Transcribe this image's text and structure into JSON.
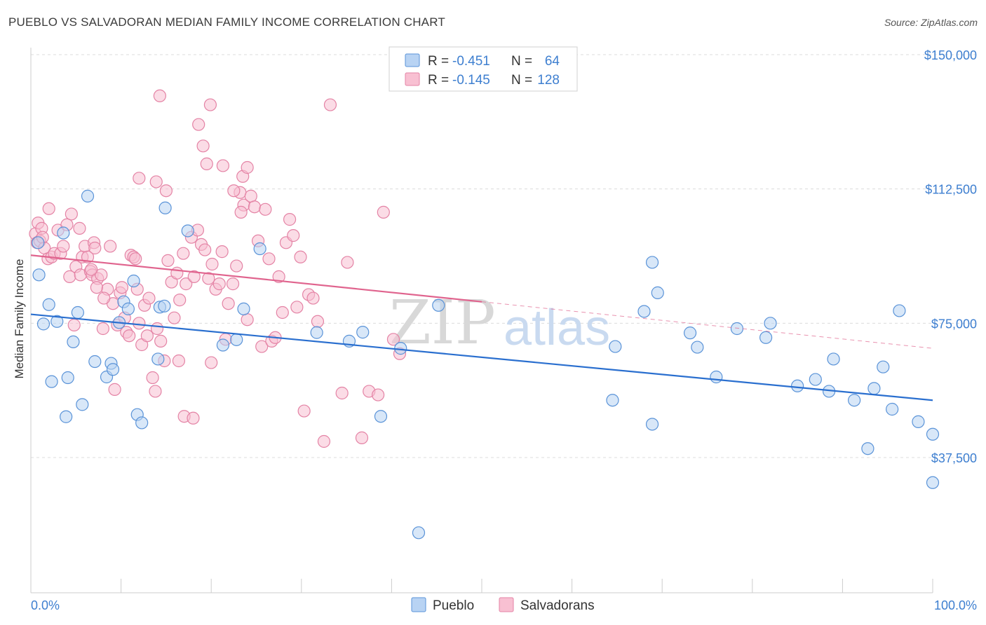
{
  "title": "PUEBLO VS SALVADORAN MEDIAN FAMILY INCOME CORRELATION CHART",
  "source": "Source: ZipAtlas.com",
  "watermark": {
    "zip": "ZIP",
    "atlas": "atlas"
  },
  "legend": {
    "r_label": "R =",
    "n_label": "N =",
    "items": [
      {
        "name": "Pueblo",
        "r": "-0.451",
        "n": "64",
        "fill": "#b8d3f3",
        "stroke": "#5a93d8"
      },
      {
        "name": "Salvadorans",
        "r": "-0.145",
        "n": "128",
        "fill": "#f8c0d2",
        "stroke": "#e483a5"
      }
    ]
  },
  "chart_data": {
    "type": "scatter",
    "title": "PUEBLO VS SALVADORAN MEDIAN FAMILY INCOME CORRELATION CHART",
    "xlabel": "",
    "ylabel": "Median Family Income",
    "xlim": [
      0,
      100
    ],
    "ylim": [
      8000,
      153000
    ],
    "x_tick_labels": [
      "0.0%",
      "100.0%"
    ],
    "y_ticks": [
      37500,
      75000,
      112500,
      150000
    ],
    "y_tick_labels": [
      "$37,500",
      "$75,000",
      "$112,500",
      "$150,000"
    ],
    "grid": "horizontal dashed",
    "legend_position": "top-center",
    "series": [
      {
        "name": "Pueblo",
        "color": "#5a93d8",
        "fill": "#b8d3f3",
        "trend": {
          "x": [
            0,
            100
          ],
          "y": [
            77500,
            53500
          ],
          "color": "#2a6fcf"
        },
        "points": [
          [
            0.8,
            97.5
          ],
          [
            0.9,
            88.5
          ],
          [
            1.4,
            74.8
          ],
          [
            2.0,
            80.2
          ],
          [
            2.3,
            58.7
          ],
          [
            2.9,
            75.5
          ],
          [
            3.6,
            100.2
          ],
          [
            3.9,
            48.9
          ],
          [
            4.1,
            59.8
          ],
          [
            4.7,
            69.8
          ],
          [
            5.2,
            78.0
          ],
          [
            5.7,
            52.3
          ],
          [
            6.3,
            110.5
          ],
          [
            7.1,
            64.3
          ],
          [
            8.4,
            60.0
          ],
          [
            8.9,
            63.8
          ],
          [
            9.1,
            62.1
          ],
          [
            9.8,
            75.2
          ],
          [
            10.3,
            81.0
          ],
          [
            10.8,
            79.0
          ],
          [
            11.4,
            86.8
          ],
          [
            11.8,
            49.5
          ],
          [
            12.3,
            47.2
          ],
          [
            14.1,
            65.0
          ],
          [
            14.3,
            79.5
          ],
          [
            14.8,
            79.8
          ],
          [
            14.9,
            107.2
          ],
          [
            17.4,
            100.8
          ],
          [
            21.3,
            68.9
          ],
          [
            22.8,
            70.4
          ],
          [
            23.6,
            79.0
          ],
          [
            25.4,
            95.8
          ],
          [
            31.7,
            72.4
          ],
          [
            35.3,
            70.0
          ],
          [
            36.8,
            72.5
          ],
          [
            38.8,
            49.0
          ],
          [
            41.0,
            68.0
          ],
          [
            43.0,
            16.5
          ],
          [
            45.2,
            80.0
          ],
          [
            64.5,
            53.5
          ],
          [
            64.8,
            68.5
          ],
          [
            68.0,
            78.3
          ],
          [
            68.9,
            46.8
          ],
          [
            68.9,
            92.0
          ],
          [
            69.5,
            83.5
          ],
          [
            73.1,
            72.3
          ],
          [
            73.9,
            68.3
          ],
          [
            76.0,
            60.0
          ],
          [
            78.3,
            73.5
          ],
          [
            81.5,
            71.0
          ],
          [
            82.0,
            75.0
          ],
          [
            85.0,
            57.5
          ],
          [
            87.0,
            59.3
          ],
          [
            88.5,
            56.0
          ],
          [
            89.0,
            65.0
          ],
          [
            91.3,
            53.5
          ],
          [
            92.8,
            40.0
          ],
          [
            93.5,
            56.8
          ],
          [
            94.5,
            62.8
          ],
          [
            95.5,
            51.0
          ],
          [
            96.3,
            78.5
          ],
          [
            98.4,
            47.5
          ],
          [
            100.0,
            30.5
          ],
          [
            100.0,
            44.0
          ]
        ]
      },
      {
        "name": "Salvadorans",
        "color": "#e483a5",
        "fill": "#f8c0d2",
        "trend": {
          "x": [
            0,
            50
          ],
          "y": [
            94000,
            81000
          ],
          "color": "#e0648e",
          "dashed_extension": {
            "x": [
              50,
              100
            ],
            "y": [
              81000,
              68000
            ]
          }
        },
        "points": [
          [
            0.5,
            100.0
          ],
          [
            0.7,
            97.5
          ],
          [
            0.8,
            103.0
          ],
          [
            1.0,
            98.0
          ],
          [
            1.2,
            101.5
          ],
          [
            1.3,
            99.0
          ],
          [
            1.5,
            96.0
          ],
          [
            1.9,
            93.0
          ],
          [
            2.0,
            107.0
          ],
          [
            2.3,
            93.5
          ],
          [
            2.6,
            94.5
          ],
          [
            3.0,
            101.0
          ],
          [
            3.3,
            94.5
          ],
          [
            3.6,
            96.5
          ],
          [
            4.0,
            102.5
          ],
          [
            4.3,
            88.0
          ],
          [
            4.5,
            105.5
          ],
          [
            4.8,
            74.5
          ],
          [
            5.0,
            90.8
          ],
          [
            5.4,
            101.5
          ],
          [
            5.5,
            88.5
          ],
          [
            5.7,
            93.5
          ],
          [
            6.0,
            96.5
          ],
          [
            6.3,
            93.5
          ],
          [
            6.6,
            89.5
          ],
          [
            6.8,
            88.5
          ],
          [
            7.0,
            97.5
          ],
          [
            7.1,
            96.0
          ],
          [
            7.4,
            87.5
          ],
          [
            7.8,
            88.5
          ],
          [
            8.0,
            73.5
          ],
          [
            8.5,
            84.5
          ],
          [
            8.8,
            96.5
          ],
          [
            9.1,
            80.5
          ],
          [
            9.3,
            56.5
          ],
          [
            9.6,
            74.5
          ],
          [
            9.9,
            83.5
          ],
          [
            10.1,
            85.0
          ],
          [
            10.4,
            76.5
          ],
          [
            10.6,
            72.5
          ],
          [
            10.9,
            71.5
          ],
          [
            11.1,
            94.0
          ],
          [
            11.4,
            93.5
          ],
          [
            11.8,
            84.5
          ],
          [
            12.0,
            75.0
          ],
          [
            12.3,
            69.0
          ],
          [
            12.6,
            80.0
          ],
          [
            12.9,
            71.5
          ],
          [
            13.1,
            82.0
          ],
          [
            13.5,
            59.8
          ],
          [
            13.8,
            56.0
          ],
          [
            14.0,
            73.5
          ],
          [
            14.4,
            70.0
          ],
          [
            14.8,
            64.5
          ],
          [
            15.2,
            92.5
          ],
          [
            15.6,
            86.5
          ],
          [
            15.9,
            76.5
          ],
          [
            16.2,
            89.0
          ],
          [
            16.5,
            81.5
          ],
          [
            16.9,
            94.5
          ],
          [
            17.2,
            86.0
          ],
          [
            17.8,
            99.0
          ],
          [
            18.1,
            88.0
          ],
          [
            18.5,
            101.0
          ],
          [
            18.9,
            97.0
          ],
          [
            19.3,
            95.5
          ],
          [
            19.7,
            87.5
          ],
          [
            20.1,
            91.5
          ],
          [
            20.5,
            84.5
          ],
          [
            20.9,
            86.0
          ],
          [
            21.2,
            95.0
          ],
          [
            21.6,
            70.5
          ],
          [
            21.9,
            80.5
          ],
          [
            22.4,
            86.0
          ],
          [
            22.8,
            91.0
          ],
          [
            23.2,
            111.5
          ],
          [
            23.6,
            108.0
          ],
          [
            24.0,
            76.0
          ],
          [
            24.4,
            110.5
          ],
          [
            24.8,
            107.5
          ],
          [
            25.2,
            98.0
          ],
          [
            25.6,
            68.5
          ],
          [
            26.0,
            106.8
          ],
          [
            26.4,
            93.0
          ],
          [
            26.7,
            70.0
          ],
          [
            27.1,
            71.0
          ],
          [
            27.5,
            88.0
          ],
          [
            27.9,
            78.0
          ],
          [
            28.3,
            97.5
          ],
          [
            28.7,
            104.0
          ],
          [
            29.1,
            99.5
          ],
          [
            29.5,
            79.5
          ],
          [
            29.9,
            93.5
          ],
          [
            30.3,
            50.5
          ],
          [
            30.8,
            83.0
          ],
          [
            31.3,
            82.0
          ],
          [
            31.8,
            75.5
          ],
          [
            32.5,
            42.0
          ],
          [
            33.2,
            136.0
          ],
          [
            34.5,
            55.5
          ],
          [
            35.1,
            92.0
          ],
          [
            36.7,
            43.0
          ],
          [
            37.5,
            56.0
          ],
          [
            38.5,
            55.0
          ],
          [
            39.1,
            106.0
          ],
          [
            40.2,
            70.5
          ],
          [
            40.9,
            66.5
          ],
          [
            14.3,
            138.5
          ],
          [
            18.6,
            130.5
          ],
          [
            19.1,
            124.5
          ],
          [
            19.5,
            119.5
          ],
          [
            19.9,
            136.0
          ],
          [
            21.3,
            119.0
          ],
          [
            22.5,
            112.0
          ],
          [
            23.3,
            106.0
          ],
          [
            23.5,
            116.0
          ],
          [
            24.0,
            118.5
          ],
          [
            12.0,
            115.5
          ],
          [
            13.9,
            114.5
          ],
          [
            15.0,
            112.0
          ],
          [
            6.7,
            90.0
          ],
          [
            7.3,
            85.0
          ],
          [
            8.1,
            82.0
          ],
          [
            11.6,
            93.0
          ],
          [
            16.4,
            64.5
          ],
          [
            17.0,
            49.0
          ],
          [
            18.0,
            48.5
          ],
          [
            20.0,
            64.0
          ]
        ]
      }
    ]
  },
  "bottom_legend": [
    "Pueblo",
    "Salvadorans"
  ]
}
